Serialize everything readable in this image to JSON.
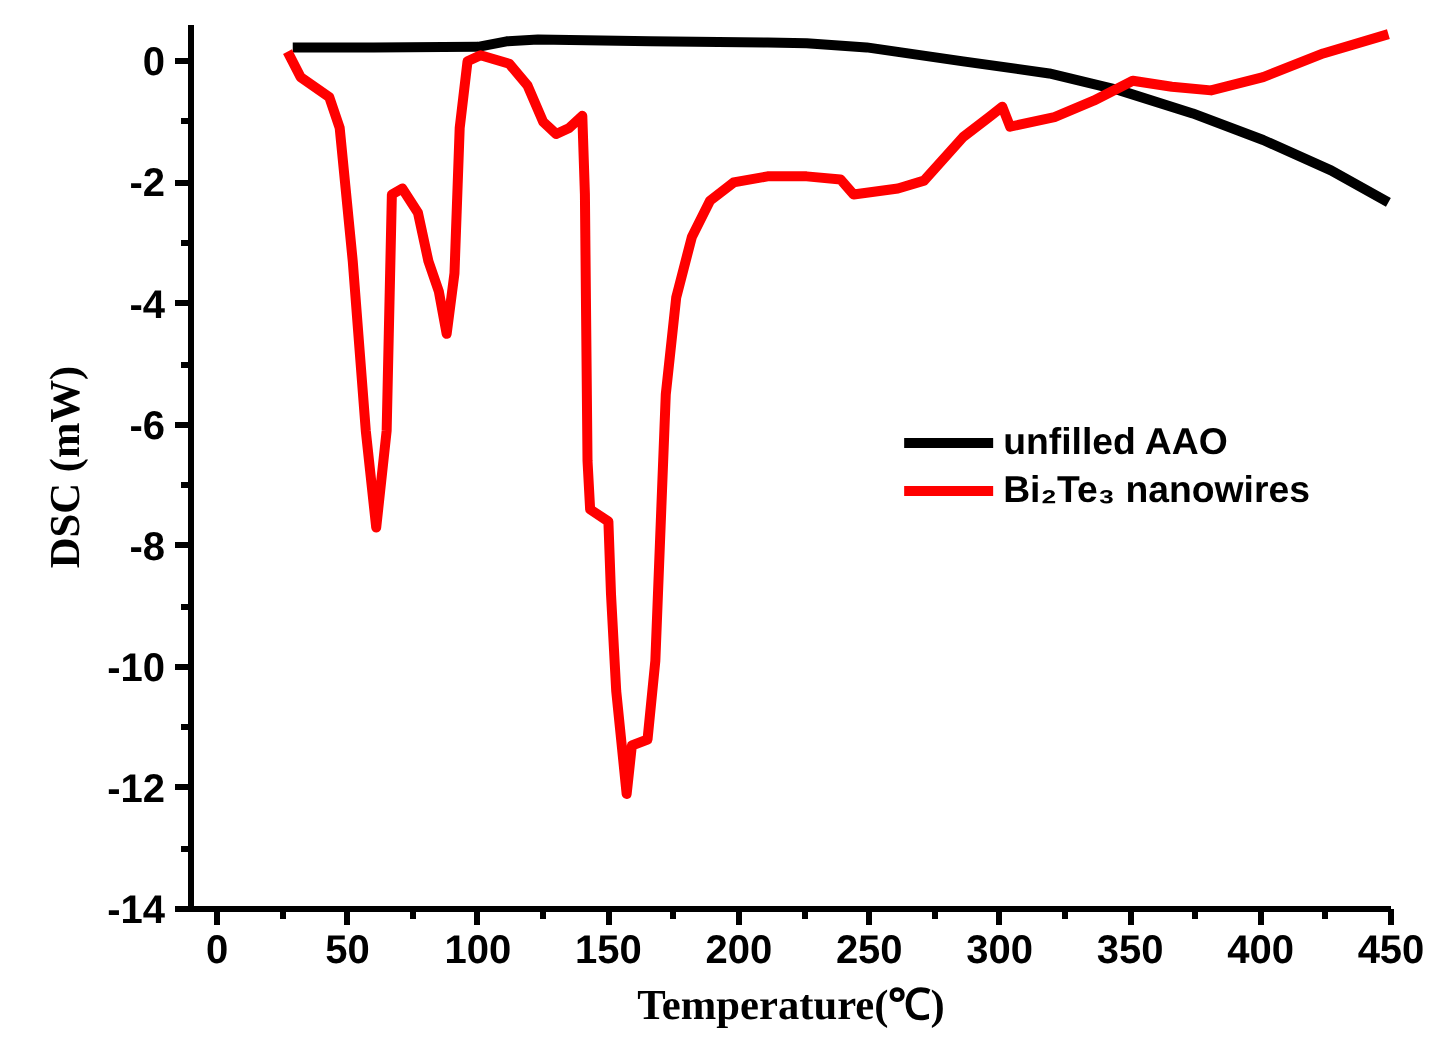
{
  "chart_data": {
    "type": "line",
    "xlabel": "Temperature(℃)",
    "ylabel": "DSC (mW)",
    "xlim": [
      -10,
      450
    ],
    "ylim": [
      -14,
      0.6
    ],
    "xticks": [
      0,
      {
        "value": 25,
        "label": null
      },
      50,
      {
        "value": 75,
        "label": null
      },
      100,
      {
        "value": 125,
        "label": null
      },
      150,
      {
        "value": 175,
        "label": null
      },
      200,
      {
        "value": 225,
        "label": null
      },
      250,
      {
        "value": 275,
        "label": null
      },
      300,
      {
        "value": 325,
        "label": null
      },
      350,
      {
        "value": 375,
        "label": null
      },
      400,
      {
        "value": 425,
        "label": null
      },
      450
    ],
    "yticks": [
      -14,
      {
        "value": -13,
        "label": null
      },
      -12,
      {
        "value": -11,
        "label": null
      },
      -10,
      {
        "value": -9,
        "label": null
      },
      -8,
      {
        "value": -7,
        "label": null
      },
      -6,
      {
        "value": -5,
        "label": null
      },
      -4,
      {
        "value": -3,
        "label": null
      },
      -2,
      {
        "value": -1,
        "label": null
      },
      0
    ],
    "grid": false,
    "legend": "right",
    "marker": "none",
    "line_style": "solid",
    "series": [
      {
        "name": "unfilled AAO",
        "color": "#000000",
        "x": [
          29,
          60,
          100,
          111,
          123,
          166,
          211,
          226,
          249,
          286,
          319,
          346,
          374,
          401,
          427,
          449
        ],
        "values": [
          0.23,
          0.23,
          0.24,
          0.33,
          0.36,
          0.33,
          0.31,
          0.3,
          0.23,
          0.0,
          -0.2,
          -0.48,
          -0.86,
          -1.3,
          -1.8,
          -2.33
        ]
      },
      {
        "name": "Bi₂Te₃ nanowires",
        "color": "#ff0000",
        "x": [
          27,
          32,
          43,
          47,
          52,
          57,
          61,
          65,
          67,
          71,
          77,
          81,
          85,
          88,
          91,
          93,
          96,
          101,
          112,
          119,
          125,
          130,
          135,
          140,
          141,
          142,
          143,
          150,
          151,
          153,
          157,
          159,
          165,
          168,
          172,
          176,
          182,
          189,
          198,
          211,
          226,
          239,
          244,
          261,
          271,
          286,
          296,
          301,
          304,
          321,
          336,
          351,
          366,
          381,
          401,
          424,
          449
        ],
        "values": [
          0.16,
          -0.26,
          -0.59,
          -1.1,
          -3.3,
          -6.1,
          -7.7,
          -6.1,
          -2.2,
          -2.1,
          -2.5,
          -3.3,
          -3.8,
          -4.5,
          -3.5,
          -1.1,
          0.0,
          0.1,
          -0.04,
          -0.4,
          -1.0,
          -1.2,
          -1.1,
          -0.9,
          -2.2,
          -6.6,
          -7.4,
          -7.6,
          -8.8,
          -10.4,
          -12.1,
          -11.3,
          -11.2,
          -9.9,
          -5.5,
          -3.9,
          -2.9,
          -2.3,
          -2.0,
          -1.9,
          -1.9,
          -1.95,
          -2.2,
          -2.1,
          -1.97,
          -1.25,
          -0.92,
          -0.75,
          -1.08,
          -0.92,
          -0.65,
          -0.32,
          -0.42,
          -0.48,
          -0.26,
          0.13,
          0.45
        ]
      }
    ]
  }
}
